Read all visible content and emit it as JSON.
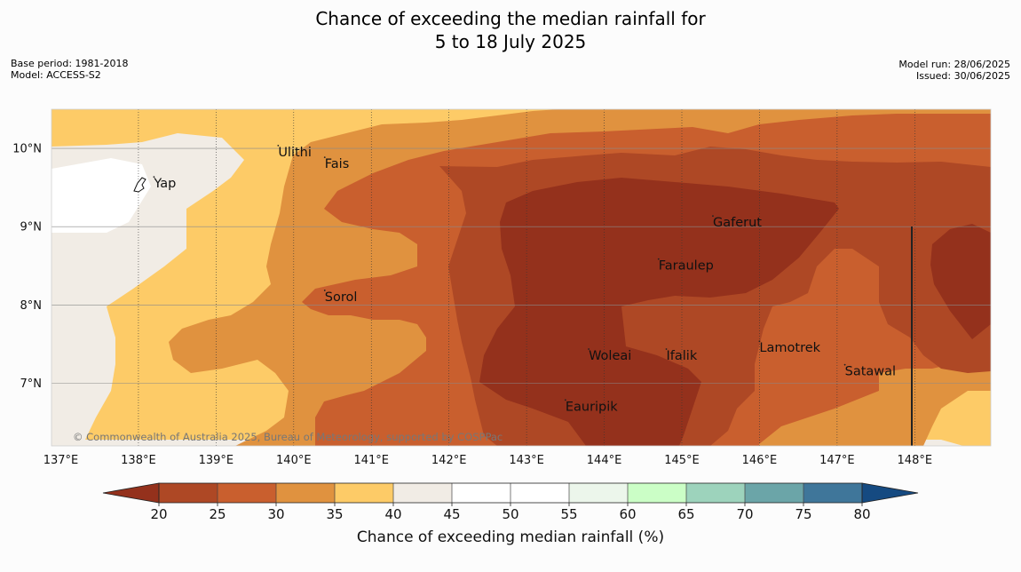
{
  "title": {
    "line1": "Chance of exceeding the median rainfall for",
    "line2": "5 to 18 July 2025"
  },
  "meta_left": {
    "base_period": "Base period: 1981-2018",
    "model": "Model: ACCESS-S2"
  },
  "meta_right": {
    "model_run": "Model run: 28/06/2025",
    "issued": "Issued: 30/06/2025"
  },
  "map": {
    "lon_range": [
      137,
      149
    ],
    "lat_range": [
      6.2,
      10.5
    ],
    "lon_ticks": [
      "137°E",
      "138°E",
      "139°E",
      "140°E",
      "141°E",
      "142°E",
      "143°E",
      "144°E",
      "145°E",
      "146°E",
      "147°E",
      "148°E"
    ],
    "lat_ticks": [
      "10°N",
      "9°N",
      "8°N",
      "7°N"
    ],
    "copyright": "© Commonwealth of Australia 2025, Bureau of Meteorology, supported by COSPPac",
    "places": [
      {
        "name": "Ulithi",
        "lon": 139.8,
        "lat": 9.9
      },
      {
        "name": "Fais",
        "lon": 140.4,
        "lat": 9.75
      },
      {
        "name": "Yap",
        "lon": 138.2,
        "lat": 9.5
      },
      {
        "name": "Gaferut",
        "lon": 145.4,
        "lat": 9.0
      },
      {
        "name": "Faraulep",
        "lon": 144.7,
        "lat": 8.45
      },
      {
        "name": "Sorol",
        "lon": 140.4,
        "lat": 8.05
      },
      {
        "name": "Lamotrek",
        "lon": 146.0,
        "lat": 7.4
      },
      {
        "name": "Woleai",
        "lon": 143.8,
        "lat": 7.3
      },
      {
        "name": "Ifalik",
        "lon": 144.8,
        "lat": 7.3
      },
      {
        "name": "Satawal",
        "lon": 147.1,
        "lat": 7.1
      },
      {
        "name": "Eauripik",
        "lon": 143.5,
        "lat": 6.65
      }
    ]
  },
  "colorbar": {
    "ticks": [
      "20",
      "25",
      "30",
      "35",
      "40",
      "45",
      "50",
      "55",
      "60",
      "65",
      "70",
      "75",
      "80"
    ],
    "colors": [
      "#ae4825",
      "#c95f2e",
      "#e0923f",
      "#fdcb67",
      "#f1ece5",
      "#ffffff",
      "#ffffff",
      "#ecf6eb",
      "#cbfec6",
      "#9dd3bc",
      "#6ba5a8",
      "#3f769a"
    ],
    "under_color": "#94311c",
    "over_color": "#154a81",
    "label": "Chance of exceeding median rainfall (%)"
  },
  "legend_colors": {
    "lt20": "#94311c",
    "c20": "#ae4825",
    "c25": "#c95f2e",
    "c30": "#e0923f",
    "c35": "#fdcb67",
    "c40": "#f1ece5",
    "c45": "#ffffff"
  }
}
